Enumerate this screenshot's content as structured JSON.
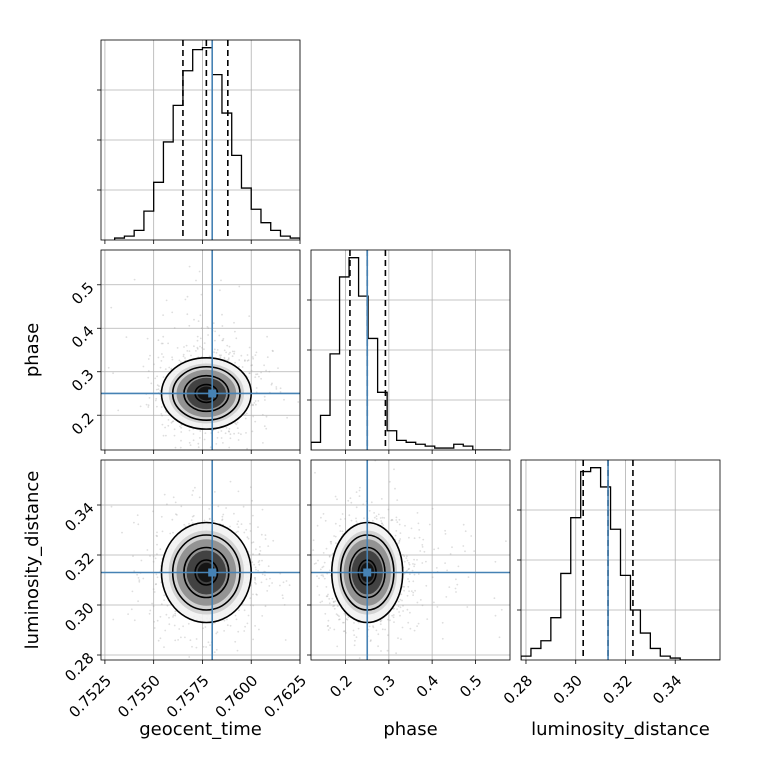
{
  "colors": {
    "truth": "#4682b4",
    "hist": "#000000",
    "samples": "#a0a0a0",
    "grid": "#b0b0b0"
  },
  "chart_data": {
    "type": "corner",
    "parameters": [
      "geocent_time",
      "phase",
      "luminosity_distance"
    ],
    "truths": {
      "geocent_time": 0.758,
      "phase": 0.25,
      "luminosity_distance": 0.313
    },
    "ranges": {
      "geocent_time": [
        0.7523,
        0.7625
      ],
      "phase": [
        0.12,
        0.58
      ],
      "luminosity_distance": [
        0.278,
        0.358
      ]
    },
    "ticks": {
      "geocent_time": [
        {
          "v": 0.7525,
          "label": "0.7525"
        },
        {
          "v": 0.755,
          "label": "0.7550"
        },
        {
          "v": 0.7575,
          "label": "0.7575"
        },
        {
          "v": 0.76,
          "label": "0.7600"
        },
        {
          "v": 0.7625,
          "label": "0.7625"
        }
      ],
      "phase": [
        {
          "v": 0.2,
          "label": "0.2"
        },
        {
          "v": 0.3,
          "label": "0.3"
        },
        {
          "v": 0.4,
          "label": "0.4"
        },
        {
          "v": 0.5,
          "label": "0.5"
        }
      ],
      "luminosity_distance": [
        {
          "v": 0.28,
          "label": "0.28"
        },
        {
          "v": 0.3,
          "label": "0.30"
        },
        {
          "v": 0.32,
          "label": "0.32"
        },
        {
          "v": 0.34,
          "label": "0.34"
        }
      ]
    },
    "quantiles": {
      "geocent_time": [
        0.7565,
        0.7577,
        0.7588
      ],
      "phase": [
        0.21,
        0.25,
        0.292
      ],
      "luminosity_distance": [
        0.303,
        0.313,
        0.323
      ]
    },
    "histograms": {
      "geocent_time": {
        "edges_start": 0.753,
        "bin_width": 0.0005,
        "counts": [
          1,
          2,
          5,
          15,
          30,
          51,
          70,
          88,
          99,
          100,
          86,
          66,
          44,
          27,
          16,
          9,
          5,
          2,
          1,
          0
        ]
      },
      "phase": {
        "edges_start": 0.12,
        "bin_width": 0.022,
        "counts": [
          4,
          18,
          50,
          90,
          100,
          80,
          58,
          30,
          10,
          5,
          4,
          3,
          2,
          1,
          1,
          3,
          2,
          0,
          0,
          0
        ]
      },
      "luminosity_distance": {
        "edges_start": 0.278,
        "bin_width": 0.004,
        "counts": [
          2,
          6,
          10,
          22,
          45,
          74,
          98,
          100,
          90,
          68,
          44,
          26,
          14,
          6,
          2,
          1,
          0,
          0,
          0,
          0
        ]
      }
    },
    "contour_fill_levels": [
      0.14,
      0.32,
      0.55,
      0.8
    ]
  }
}
